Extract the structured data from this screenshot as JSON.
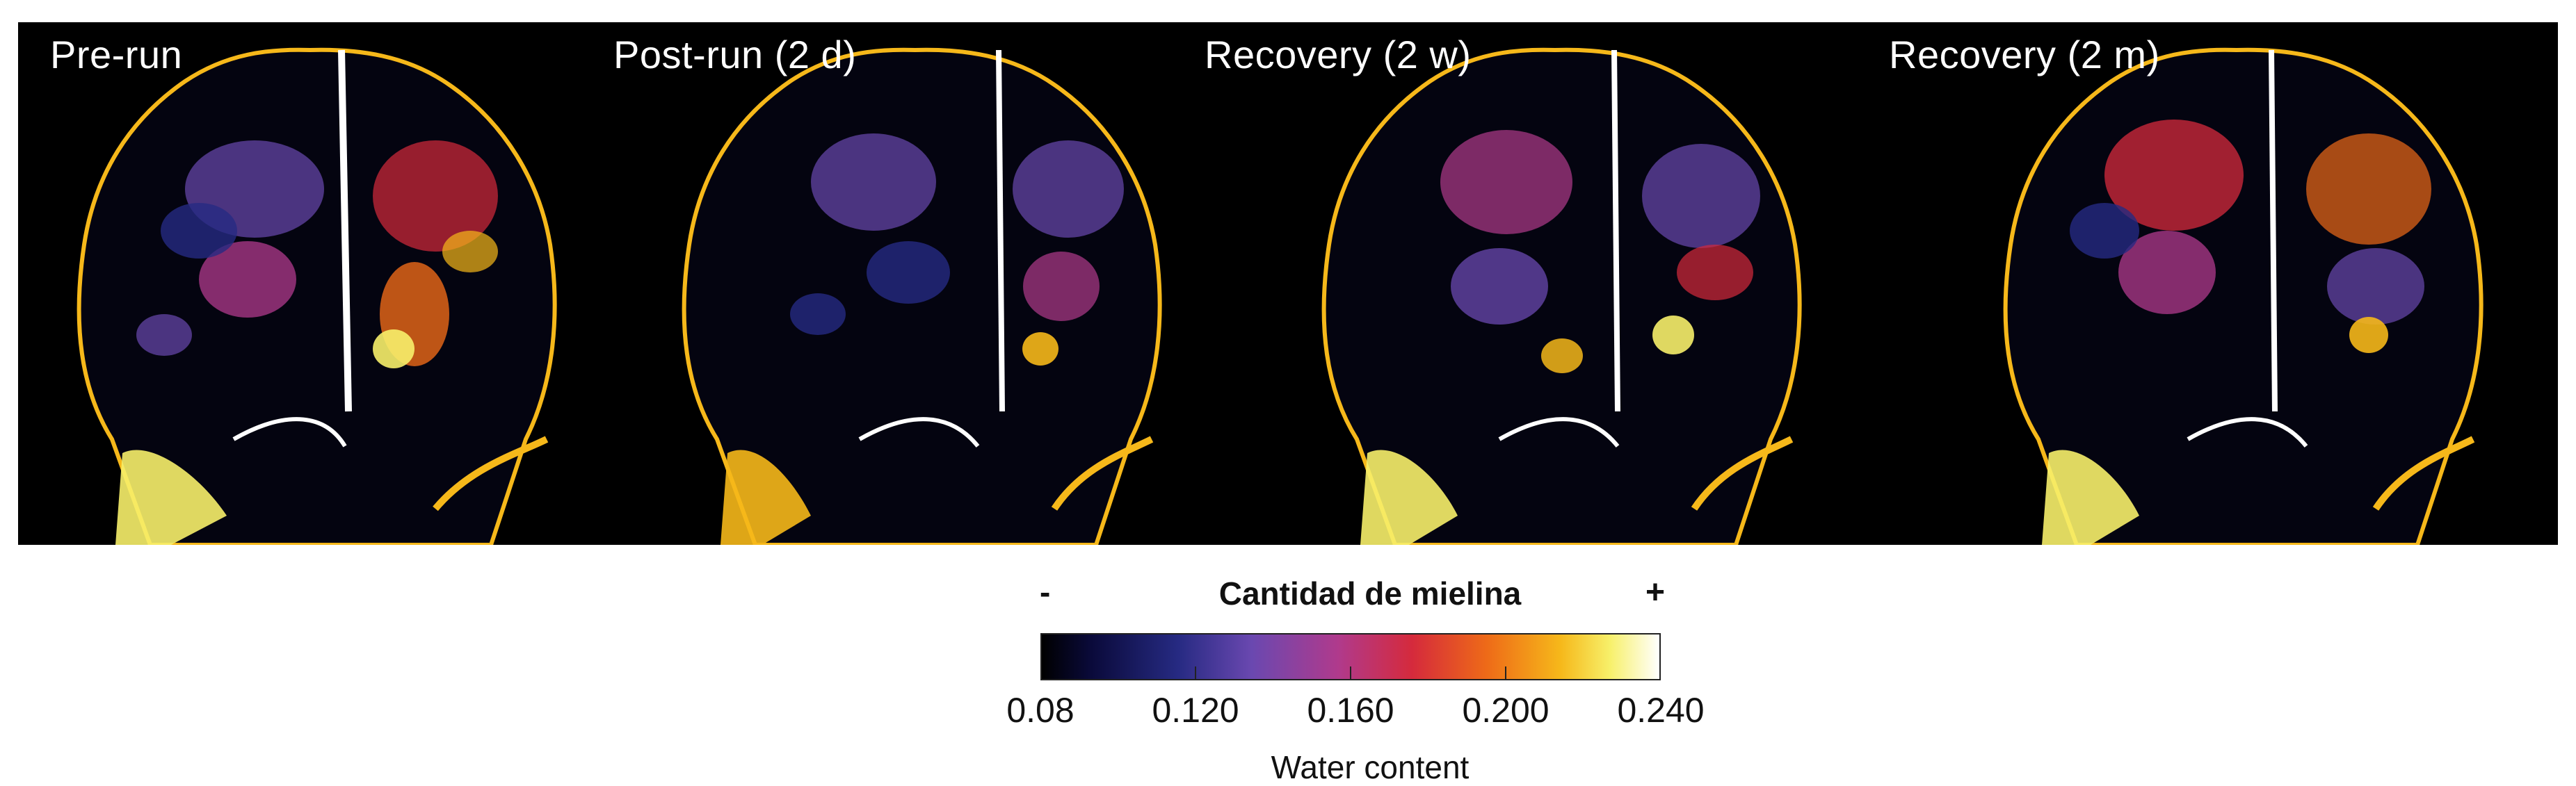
{
  "panels": [
    {
      "label": "Pre-run"
    },
    {
      "label": "Post-run (2 d)"
    },
    {
      "label": "Recovery (2 w)"
    },
    {
      "label": "Recovery (2 m)"
    }
  ],
  "colorbar": {
    "title": "Cantidad de mielina",
    "low_symbol": "-",
    "high_symbol": "+",
    "ticks": [
      "0.08",
      "0.120",
      "0.160",
      "0.200",
      "0.240"
    ],
    "units": "Water content",
    "colormap": [
      "#000000",
      "#262a82",
      "#6a48b0",
      "#b03a8c",
      "#d52a3c",
      "#ee6a18",
      "#f6b81a",
      "#f7f06a",
      "#ffffff"
    ]
  }
}
